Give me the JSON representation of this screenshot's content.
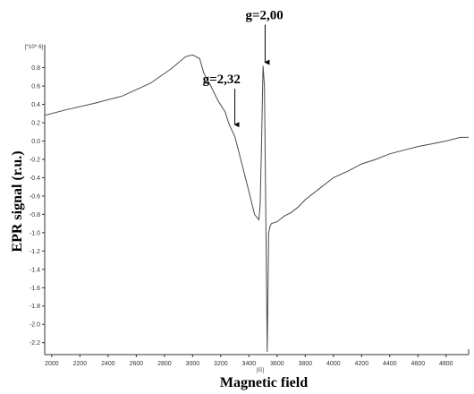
{
  "chart_data": {
    "type": "line",
    "title": "",
    "xlabel": "Magnetic field",
    "ylabel": "EPR signal (r.u.)",
    "x_unit": "[G]",
    "y_scale_label": "[*10^ 6]",
    "xlim": [
      1950,
      4960
    ],
    "ylim": [
      -2.33,
      1.05
    ],
    "x_ticks": [
      "2000",
      "2200",
      "2400",
      "2600",
      "2800",
      "3000",
      "3200",
      "3400",
      "3600",
      "3800",
      "4000",
      "4200",
      "4400",
      "4600",
      "4800"
    ],
    "y_ticks": [
      "0.8",
      "0.6",
      "0.4",
      "0.2",
      "0.0",
      "-0.2",
      "-0.4",
      "-0.6",
      "-0.8",
      "-1.0",
      "-1.2",
      "-1.4",
      "-1.6",
      "-1.8",
      "-2.0",
      "-2.2"
    ],
    "grid": false,
    "series": [
      {
        "x": [
          1950,
          2100,
          2300,
          2500,
          2700,
          2850,
          2950,
          3000,
          3050,
          3080,
          3130,
          3180,
          3230,
          3260,
          3300,
          3350,
          3400,
          3440,
          3470,
          3480,
          3490,
          3500,
          3510,
          3520,
          3530,
          3540,
          3550,
          3560,
          3600,
          3650,
          3700,
          3750,
          3800,
          3900,
          4000,
          4100,
          4200,
          4300,
          4400,
          4500,
          4600,
          4700,
          4800,
          4900,
          4960
        ],
        "y": [
          0.28,
          0.34,
          0.41,
          0.49,
          0.63,
          0.79,
          0.92,
          0.94,
          0.9,
          0.74,
          0.6,
          0.44,
          0.32,
          0.18,
          0.05,
          -0.25,
          -0.55,
          -0.8,
          -0.86,
          -0.7,
          0.0,
          0.82,
          0.6,
          -0.8,
          -2.3,
          -1.0,
          -0.93,
          -0.9,
          -0.88,
          -0.82,
          -0.78,
          -0.72,
          -0.64,
          -0.52,
          -0.4,
          -0.33,
          -0.25,
          -0.2,
          -0.14,
          -0.1,
          -0.06,
          -0.03,
          0.0,
          0.04,
          0.04
        ]
      }
    ],
    "annotations": [
      {
        "text": "g=2,00",
        "x": 3515,
        "y": 0.82
      },
      {
        "text": "g=2,32",
        "x": 3300,
        "y": 0.14
      }
    ]
  }
}
